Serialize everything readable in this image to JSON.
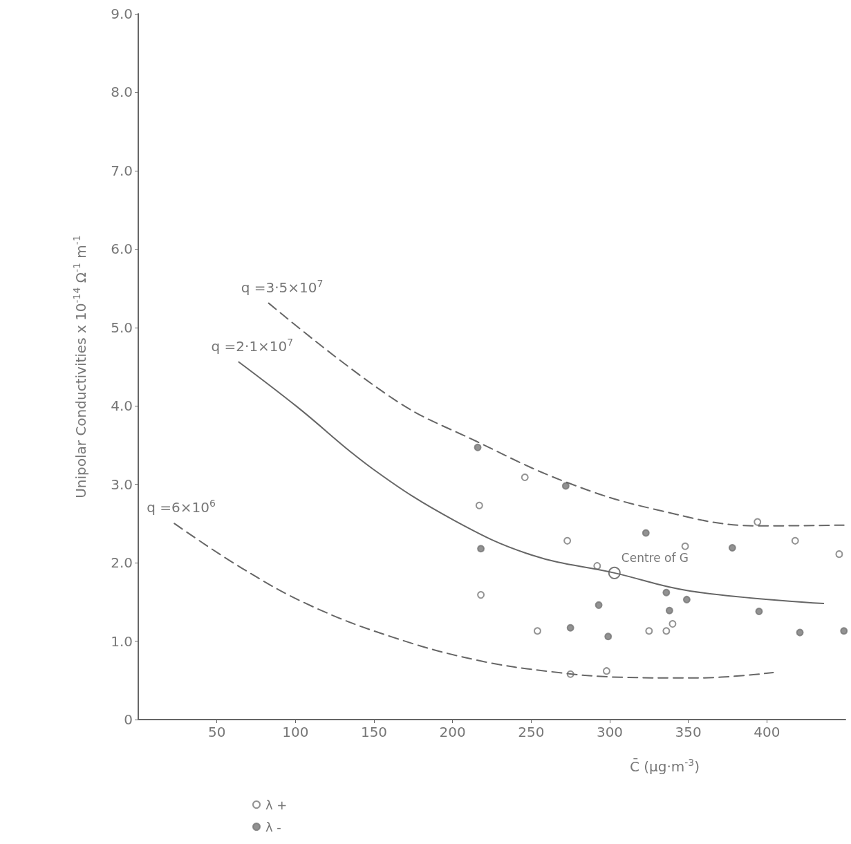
{
  "chart_data": {
    "type": "scatter",
    "xlabel": "C̄ (μg·m$^{-3}$)",
    "ylabel": "Unipolar Conductivities x 10$^{-14}$ Ω$^{-1}$ m$^{-1}$",
    "xlim": [
      0,
      450
    ],
    "xticks": [
      50,
      100,
      150,
      200,
      250,
      300,
      350,
      400
    ],
    "ylim": [
      0,
      9
    ],
    "yticks": [
      0,
      {
        "value": 1,
        "label": "1.0"
      },
      {
        "value": 2,
        "label": "2.0"
      },
      {
        "value": 3,
        "label": "3.0"
      },
      {
        "value": 4,
        "label": "4.0"
      },
      {
        "value": 5,
        "label": "5.0"
      },
      {
        "value": 6,
        "label": "6.0"
      },
      {
        "value": 7,
        "label": "7.0"
      },
      {
        "value": 8,
        "label": "8.0"
      },
      {
        "value": 9,
        "label": "9.0"
      }
    ],
    "grid": false,
    "legend": "bottom left",
    "marker": "circle",
    "annotations": [
      {
        "text": "Centre of G",
        "x": 303,
        "y": 1.87
      }
    ],
    "series": [
      {
        "name": "λ +",
        "color": "#777777",
        "x": [
          217,
          246,
          273,
          292,
          394,
          418,
          446,
          348,
          218,
          254,
          325,
          336,
          340,
          275,
          298
        ],
        "values": [
          2.73,
          3.09,
          2.28,
          1.96,
          2.52,
          2.28,
          2.11,
          2.21,
          1.59,
          1.13,
          1.13,
          1.13,
          1.22,
          0.58,
          0.62
        ]
      },
      {
        "name": "λ -",
        "color": "#777777",
        "x": [
          216,
          272,
          323,
          218,
          378,
          293,
          336,
          338,
          349,
          395,
          275,
          299,
          421,
          449
        ],
        "values": [
          3.47,
          2.98,
          2.38,
          2.18,
          2.19,
          1.46,
          1.62,
          1.39,
          1.53,
          1.38,
          1.17,
          1.06,
          1.11,
          1.13
        ]
      },
      {
        "name": "q =3·5×10$^{7}$",
        "type": "line",
        "line_style": "dashed",
        "marker": "none",
        "color": "#666666",
        "x": [
          83,
          163,
          215,
          272,
          329,
          395,
          449
        ],
        "values": [
          5.31,
          4.08,
          3.55,
          3.03,
          2.68,
          2.47,
          2.48
        ]
      },
      {
        "name": "q =2·1×10$^{7}$",
        "type": "line",
        "line_style": "solid",
        "marker": "none",
        "color": "#666666",
        "x": [
          64,
          101,
          149,
          201,
          250,
          303,
          351,
          436
        ],
        "values": [
          4.56,
          3.99,
          3.2,
          2.54,
          2.1,
          1.87,
          1.64,
          1.48
        ]
      },
      {
        "name": "q =6×10$^{6}$",
        "type": "line",
        "line_style": "dashed",
        "marker": "none",
        "color": "#666666",
        "x": [
          23,
          66,
          110,
          162,
          215,
          263,
          307,
          355,
          404
        ],
        "values": [
          2.5,
          1.93,
          1.45,
          1.05,
          0.76,
          0.61,
          0.54,
          0.53,
          0.6
        ]
      }
    ]
  }
}
